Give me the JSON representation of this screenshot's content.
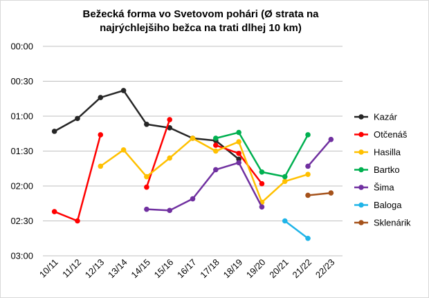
{
  "chart_data": {
    "type": "line",
    "title_lines": [
      "Bežecká forma vo Svetovom pohári (Ø strata na",
      "najrýchlejšiho bežca na trati dlhej 10 km)"
    ],
    "categories": [
      "10/11",
      "11/12",
      "12/13",
      "13/14",
      "14/15",
      "15/16",
      "16/17",
      "17/18",
      "18/19",
      "19/20",
      "20/21",
      "21/22",
      "22/23"
    ],
    "y_tick_labels": [
      "00:00",
      "00:30",
      "01:00",
      "01:30",
      "02:00",
      "02:30",
      "03:00"
    ],
    "ylim_seconds": [
      0,
      180
    ],
    "y_reversed": true,
    "grid": true,
    "legend_position": "right",
    "series": [
      {
        "name": "Kazár",
        "color": "#262626",
        "values": [
          73,
          62,
          44,
          38,
          67,
          70,
          79,
          81,
          97,
          null,
          null,
          null,
          null
        ]
      },
      {
        "name": "Otčenáš",
        "color": "#ff0000",
        "values": [
          142,
          150,
          76,
          null,
          121,
          63,
          null,
          85,
          92,
          118,
          null,
          null,
          null
        ]
      },
      {
        "name": "Hasilla",
        "color": "#ffc000",
        "values": [
          null,
          null,
          103,
          89,
          112,
          96,
          79,
          90,
          82,
          134,
          116,
          110,
          null
        ]
      },
      {
        "name": "Bartko",
        "color": "#00b050",
        "values": [
          null,
          null,
          null,
          null,
          null,
          null,
          null,
          79,
          74,
          108,
          112,
          76,
          null
        ]
      },
      {
        "name": "Šima",
        "color": "#7030a0",
        "values": [
          null,
          null,
          null,
          null,
          140,
          141,
          131,
          106,
          100,
          138,
          null,
          103,
          80
        ]
      },
      {
        "name": "Baloga",
        "color": "#1fb4e8",
        "values": [
          null,
          null,
          null,
          null,
          null,
          null,
          null,
          null,
          null,
          null,
          150,
          165,
          null
        ]
      },
      {
        "name": "Sklenárik",
        "color": "#a5521b",
        "values": [
          null,
          null,
          null,
          null,
          null,
          null,
          null,
          null,
          null,
          null,
          null,
          128,
          126
        ]
      }
    ]
  }
}
